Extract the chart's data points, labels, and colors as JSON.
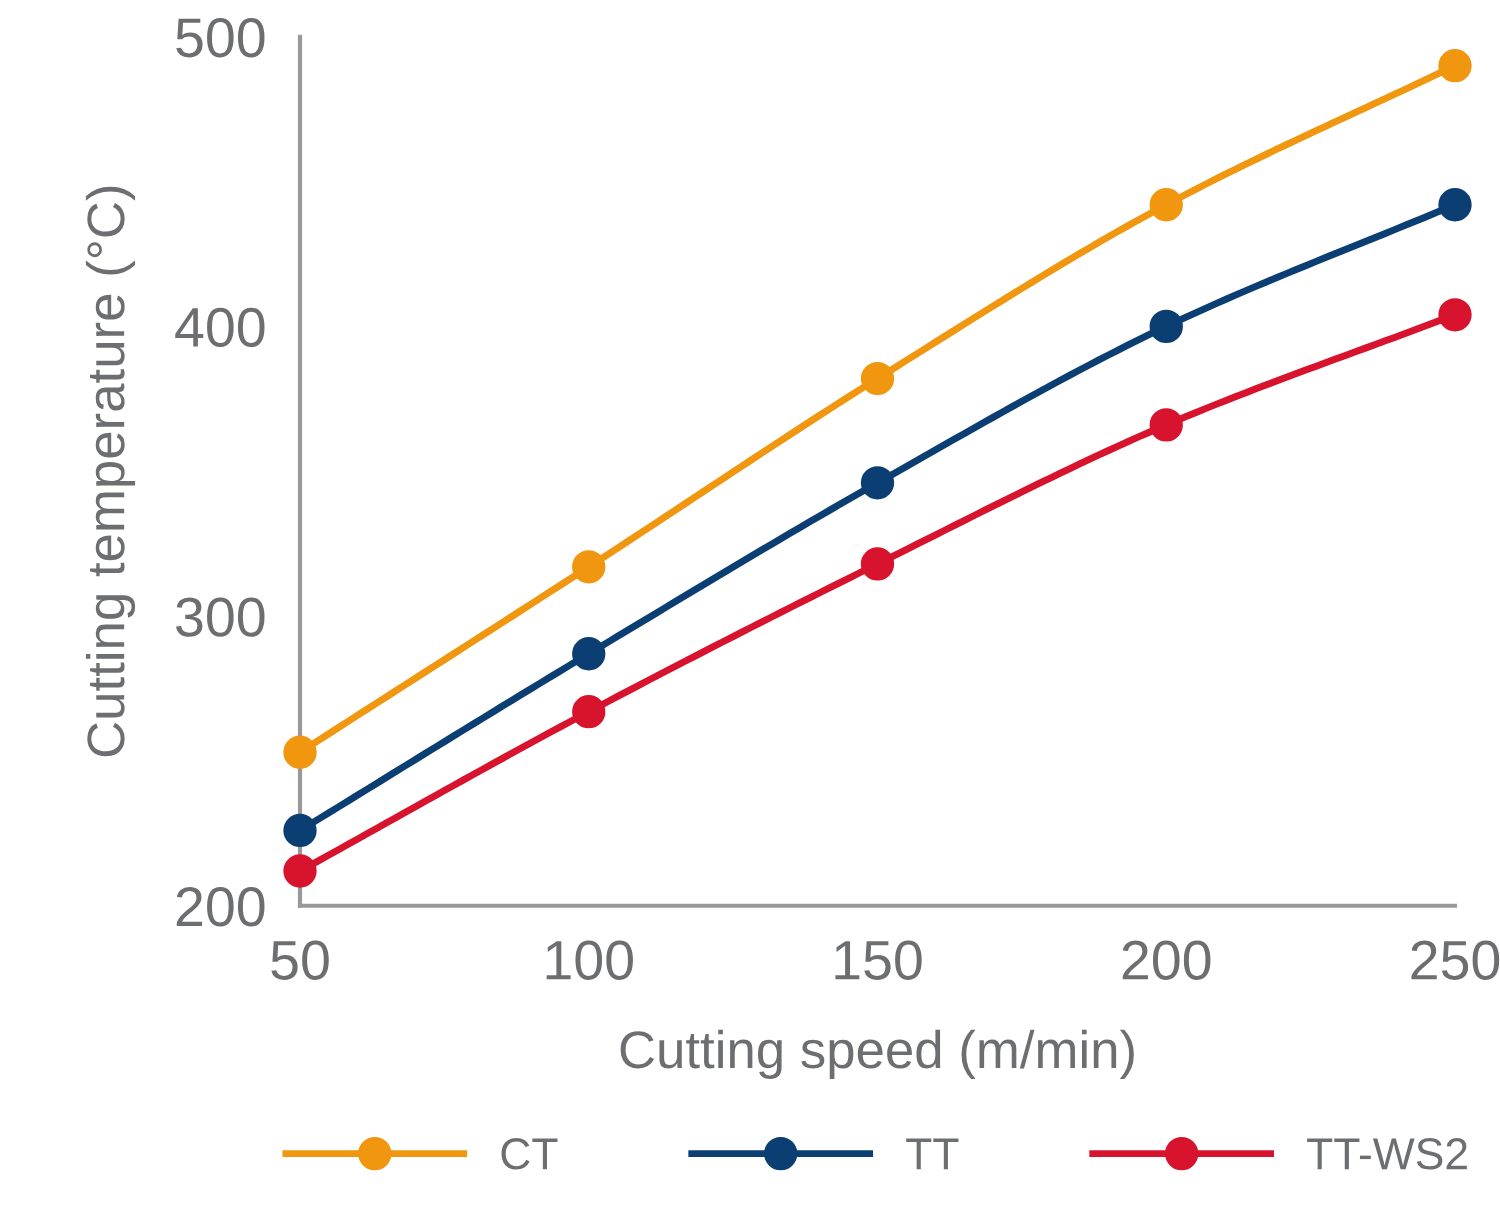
{
  "chart_data": {
    "type": "line",
    "xlabel": "Cutting speed (m/min)",
    "ylabel": "Cutting temperature (°C)",
    "x": [
      50,
      100,
      150,
      200,
      250
    ],
    "series": [
      {
        "name": "CT",
        "color": "#f0960f",
        "values": [
          253,
          317,
          382,
          442,
          490
        ]
      },
      {
        "name": "TT",
        "color": "#0b3f73",
        "values": [
          226,
          287,
          346,
          400,
          442
        ]
      },
      {
        "name": "TT-WS2",
        "color": "#d7132e",
        "values": [
          212,
          267,
          318,
          366,
          404
        ]
      }
    ],
    "xlim": [
      50,
      250
    ],
    "xticks": [
      50,
      100,
      150,
      200,
      250
    ],
    "ylim": [
      200,
      500
    ],
    "yticks": [
      200,
      300,
      400,
      500
    ],
    "grid": false,
    "legend": "bottom",
    "marker": "circle",
    "line_style": "solid"
  }
}
